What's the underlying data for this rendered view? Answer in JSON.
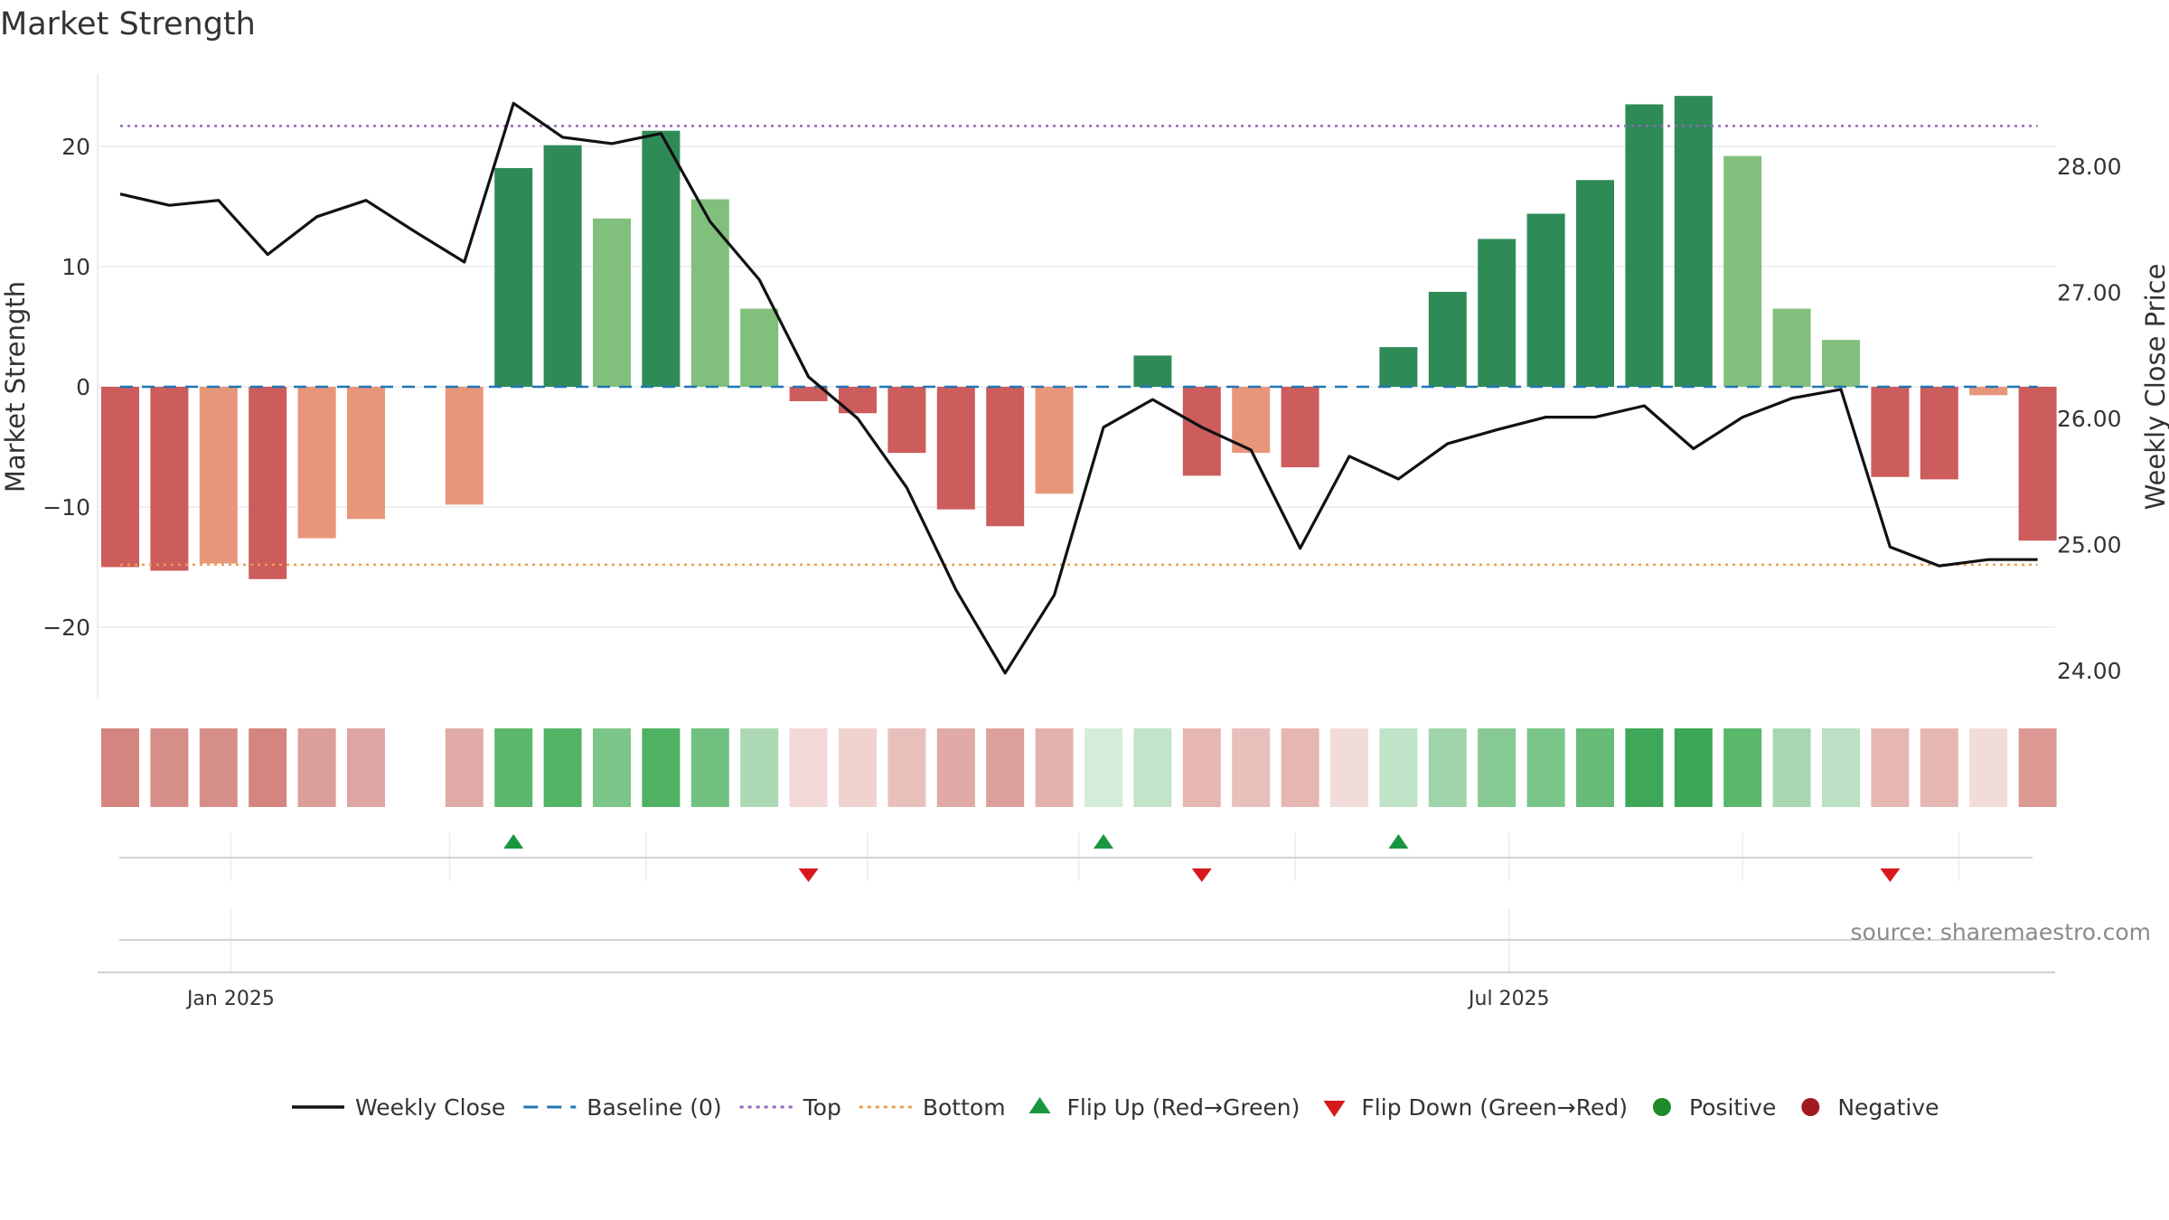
{
  "chart_data": {
    "type": "bar",
    "title": "Market Strength",
    "ylabel": "Market Strength",
    "y2label": "Weekly Close Price",
    "source": "source: sharemaestro.com",
    "ylim": [
      -26,
      26
    ],
    "y2lim": [
      23.7,
      28.6
    ],
    "yticks": [
      20,
      10,
      0,
      -10,
      -20
    ],
    "ytick_labels": [
      "20",
      "10",
      "0",
      "−10",
      "−20"
    ],
    "y2ticks": [
      28,
      27,
      26,
      25,
      24
    ],
    "y2tick_labels": [
      "28.00",
      "27.00",
      "26.00",
      "25.00",
      "24.00"
    ],
    "xtick_labels": [
      {
        "label": "Jan 2025",
        "week": 2.25
      },
      {
        "label": "Jul 2025",
        "week": 28.25
      }
    ],
    "bottom_gridline_weeks": [
      6.7,
      10.7,
      15.2,
      19.5,
      23.9,
      33.0,
      37.4
    ],
    "top_level": 21.7,
    "bottom_level": -14.8,
    "baseline": 0,
    "strength": [
      -15.0,
      -15.3,
      -14.7,
      -16.0,
      -12.6,
      -11.0,
      null,
      -9.8,
      18.2,
      20.1,
      14.0,
      21.3,
      15.6,
      6.5,
      -1.2,
      -2.2,
      -5.5,
      -10.2,
      -11.6,
      -8.9,
      0,
      2.6,
      -7.4,
      -5.5,
      -6.7,
      0,
      3.3,
      7.9,
      12.3,
      14.4,
      17.2,
      23.5,
      24.2,
      19.2,
      6.5,
      3.9,
      -7.5,
      -7.7,
      -0.7,
      -12.8
    ],
    "bar_colors": [
      "#cd5c5c",
      "#cd5c5c",
      "#e8967a",
      "#cd5c5c",
      "#e8967a",
      "#e8967a",
      "",
      "#e8967a",
      "#2e8b57",
      "#2e8b57",
      "#80c07c",
      "#2e8b57",
      "#80c07c",
      "#80c07c",
      "#cd5c5c",
      "#cd5c5c",
      "#cd5c5c",
      "#cd5c5c",
      "#cd5c5c",
      "#e8967a",
      "",
      "#2e8b57",
      "#cd5c5c",
      "#e8967a",
      "#cd5c5c",
      "",
      "#2e8b57",
      "#2e8b57",
      "#2e8b57",
      "#2e8b57",
      "#2e8b57",
      "#2e8b57",
      "#2e8b57",
      "#80c07c",
      "#80c07c",
      "#80c07c",
      "#cd5c5c",
      "#cd5c5c",
      "#e8967a",
      "#cd5c5c"
    ],
    "heat_colors": [
      "#d4857f",
      "#d68e89",
      "#d68e89",
      "#d4857f",
      "#db9e99",
      "#dea6a2",
      "",
      "#e1aba7",
      "#5cb86c",
      "#54b466",
      "#7cc68a",
      "#4fb263",
      "#70c07f",
      "#acd9b4",
      "#f2d8d6",
      "#f0d2cf",
      "#e8bfbb",
      "#e0aaa6",
      "#dba09b",
      "#e3b1ad",
      "#d4ecd9",
      "#c2e4c9",
      "#e6b6b2",
      "#e8bfbb",
      "#e6b6b2",
      "#f2dcda",
      "#bfe3c6",
      "#a0d4aa",
      "#86c993",
      "#7ac58a",
      "#67bc78",
      "#3fa758",
      "#3ca756",
      "#5ab86b",
      "#a8d7b1",
      "#bbe0c3",
      "#e6b6b2",
      "#e6b6b2",
      "#f2dcda",
      "#dc9994"
    ],
    "weekly_close": [
      27.78,
      27.69,
      27.73,
      27.3,
      27.6,
      27.73,
      27.48,
      27.24,
      28.5,
      28.23,
      28.18,
      28.26,
      27.56,
      27.1,
      26.33,
      26.0,
      25.45,
      24.64,
      23.98,
      24.6,
      25.93,
      26.15,
      25.93,
      25.75,
      24.97,
      25.7,
      25.52,
      25.8,
      25.91,
      26.01,
      26.01,
      26.1,
      25.76,
      26.01,
      26.16,
      26.23,
      24.98,
      24.83,
      24.88,
      24.88
    ],
    "flip_up_weeks": [
      8,
      20,
      26
    ],
    "flip_down_weeks": [
      14,
      22,
      36
    ],
    "legend": [
      {
        "label": "Weekly Close",
        "kind": "line",
        "color": "#111111"
      },
      {
        "label": "Baseline (0)",
        "kind": "dash",
        "color": "#1f77b4"
      },
      {
        "label": "Top",
        "kind": "dot",
        "color": "#9467bd"
      },
      {
        "label": "Bottom",
        "kind": "dot",
        "color": "#e8a04c"
      },
      {
        "label": "Flip Up (Red→Green)",
        "kind": "tri-up",
        "color": "#1a9641"
      },
      {
        "label": "Flip Down (Green→Red)",
        "kind": "tri-down",
        "color": "#d7191c"
      },
      {
        "label": "Positive",
        "kind": "circle",
        "color": "#1e8a2a"
      },
      {
        "label": "Negative",
        "kind": "circle",
        "color": "#a11a22"
      }
    ],
    "legend_placement": "bottom",
    "grid": true
  }
}
